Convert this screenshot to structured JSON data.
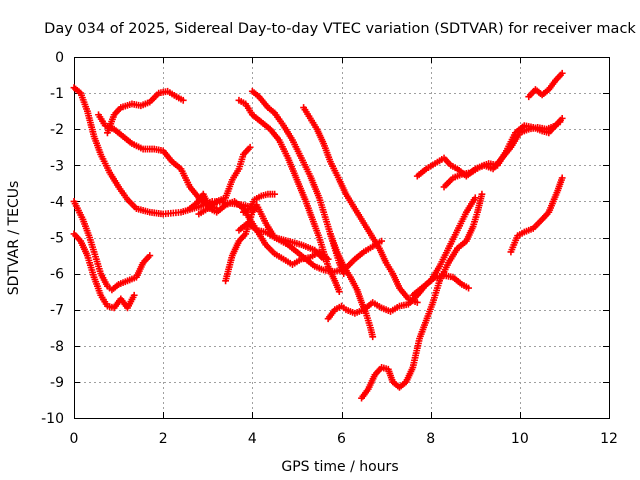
{
  "chart_data": {
    "type": "scatter",
    "title": "Day 034 of 2025, Sidereal Day-to-day VTEC variation (SDTVAR) for receiver mack",
    "xlabel": "GPS time / hours",
    "ylabel": "SDTVAR / TECUs",
    "xlim": [
      0,
      12
    ],
    "ylim": [
      -10,
      0
    ],
    "x_ticks": [
      0,
      2,
      4,
      6,
      8,
      10,
      12
    ],
    "y_ticks": [
      0,
      -1,
      -2,
      -3,
      -4,
      -5,
      -6,
      -7,
      -8,
      -9,
      -10
    ],
    "grid": true,
    "marker": "plus",
    "color": "#ff0000",
    "series": [
      {
        "name": "track-1",
        "points": [
          [
            0,
            -0.85
          ],
          [
            0.15,
            -1.0
          ],
          [
            0.3,
            -1.5
          ],
          [
            0.45,
            -2.2
          ],
          [
            0.6,
            -2.7
          ],
          [
            0.8,
            -3.2
          ],
          [
            1.0,
            -3.6
          ],
          [
            1.2,
            -3.95
          ],
          [
            1.4,
            -4.2
          ],
          [
            1.7,
            -4.3
          ],
          [
            2.0,
            -4.35
          ],
          [
            2.4,
            -4.3
          ],
          [
            2.8,
            -4.15
          ],
          [
            3.1,
            -4.0
          ],
          [
            3.5,
            -4.05
          ],
          [
            3.8,
            -4.1
          ],
          [
            4.1,
            -4.2
          ]
        ]
      },
      {
        "name": "track-2",
        "points": [
          [
            0,
            -4.0
          ],
          [
            0.2,
            -4.5
          ],
          [
            0.35,
            -5.0
          ],
          [
            0.5,
            -5.6
          ],
          [
            0.6,
            -6.0
          ],
          [
            0.75,
            -6.35
          ],
          [
            0.85,
            -6.45
          ],
          [
            1.0,
            -6.3
          ],
          [
            1.2,
            -6.2
          ],
          [
            1.4,
            -6.1
          ],
          [
            1.55,
            -5.7
          ],
          [
            1.7,
            -5.5
          ]
        ]
      },
      {
        "name": "track-3",
        "points": [
          [
            0,
            -4.9
          ],
          [
            0.15,
            -5.1
          ],
          [
            0.3,
            -5.5
          ],
          [
            0.45,
            -6.1
          ],
          [
            0.6,
            -6.6
          ],
          [
            0.75,
            -6.9
          ],
          [
            0.9,
            -6.95
          ],
          [
            1.05,
            -6.7
          ],
          [
            1.2,
            -6.95
          ],
          [
            1.35,
            -6.6
          ]
        ]
      },
      {
        "name": "track-4",
        "points": [
          [
            0.55,
            -1.6
          ],
          [
            0.7,
            -1.9
          ],
          [
            0.9,
            -2.0
          ],
          [
            1.1,
            -2.2
          ],
          [
            1.3,
            -2.4
          ],
          [
            1.55,
            -2.55
          ],
          [
            1.8,
            -2.55
          ],
          [
            2.0,
            -2.6
          ],
          [
            2.2,
            -2.9
          ],
          [
            2.4,
            -3.1
          ],
          [
            2.6,
            -3.6
          ],
          [
            2.8,
            -3.9
          ],
          [
            3.0,
            -4.1
          ],
          [
            3.2,
            -4.2
          ]
        ]
      },
      {
        "name": "track-5",
        "points": [
          [
            0.75,
            -2.1
          ],
          [
            0.9,
            -1.6
          ],
          [
            1.05,
            -1.4
          ],
          [
            1.3,
            -1.3
          ],
          [
            1.5,
            -1.35
          ],
          [
            1.7,
            -1.25
          ],
          [
            1.9,
            -1.0
          ],
          [
            2.1,
            -0.95
          ],
          [
            2.3,
            -1.1
          ],
          [
            2.45,
            -1.2
          ]
        ]
      },
      {
        "name": "track-6",
        "points": [
          [
            2.8,
            -4.35
          ],
          [
            3.0,
            -4.2
          ],
          [
            3.2,
            -4.0
          ],
          [
            3.4,
            -3.9
          ],
          [
            3.55,
            -3.4
          ],
          [
            3.7,
            -3.1
          ],
          [
            3.8,
            -2.7
          ],
          [
            3.95,
            -2.5
          ]
        ]
      },
      {
        "name": "track-7",
        "points": [
          [
            2.6,
            -4.2
          ],
          [
            2.75,
            -4.05
          ],
          [
            2.9,
            -3.8
          ],
          [
            3.05,
            -4.2
          ],
          [
            3.2,
            -4.3
          ],
          [
            3.4,
            -4.1
          ],
          [
            3.6,
            -4.0
          ],
          [
            3.8,
            -4.2
          ],
          [
            3.95,
            -4.5
          ],
          [
            4.1,
            -4.8
          ],
          [
            4.3,
            -5.2
          ],
          [
            4.5,
            -5.45
          ],
          [
            4.7,
            -5.6
          ],
          [
            4.9,
            -5.75
          ],
          [
            5.1,
            -5.6
          ],
          [
            5.3,
            -5.55
          ],
          [
            5.5,
            -5.4
          ],
          [
            5.7,
            -5.6
          ]
        ]
      },
      {
        "name": "track-8",
        "points": [
          [
            3.4,
            -6.2
          ],
          [
            3.55,
            -5.5
          ],
          [
            3.7,
            -5.1
          ],
          [
            3.85,
            -4.9
          ],
          [
            4.0,
            -4.3
          ],
          [
            4.1,
            -4.1
          ],
          [
            4.3,
            -4.6
          ],
          [
            4.5,
            -5.0
          ],
          [
            4.8,
            -5.2
          ],
          [
            5.1,
            -5.5
          ],
          [
            5.4,
            -5.8
          ],
          [
            5.6,
            -5.9
          ],
          [
            5.85,
            -5.95
          ],
          [
            6.1,
            -5.85
          ],
          [
            6.3,
            -5.6
          ],
          [
            6.5,
            -5.4
          ],
          [
            6.7,
            -5.25
          ],
          [
            6.9,
            -5.1
          ]
        ]
      },
      {
        "name": "track-9",
        "points": [
          [
            3.8,
            -4.3
          ],
          [
            3.95,
            -4.2
          ],
          [
            4.05,
            -3.95
          ],
          [
            4.2,
            -3.85
          ],
          [
            4.35,
            -3.8
          ],
          [
            4.5,
            -3.8
          ]
        ]
      },
      {
        "name": "track-10",
        "points": [
          [
            3.7,
            -4.8
          ],
          [
            3.9,
            -4.6
          ],
          [
            4.1,
            -4.8
          ],
          [
            4.3,
            -4.85
          ],
          [
            4.5,
            -5.0
          ],
          [
            4.8,
            -5.1
          ],
          [
            5.1,
            -5.2
          ],
          [
            5.4,
            -5.35
          ],
          [
            5.6,
            -5.6
          ]
        ]
      },
      {
        "name": "track-11",
        "points": [
          [
            4.0,
            -0.95
          ],
          [
            4.15,
            -1.1
          ],
          [
            4.35,
            -1.4
          ],
          [
            4.5,
            -1.55
          ],
          [
            4.7,
            -1.9
          ],
          [
            4.9,
            -2.3
          ],
          [
            5.1,
            -2.8
          ],
          [
            5.3,
            -3.3
          ],
          [
            5.5,
            -3.9
          ],
          [
            5.65,
            -4.5
          ],
          [
            5.8,
            -5.1
          ],
          [
            5.95,
            -5.7
          ],
          [
            6.05,
            -6.0
          ]
        ]
      },
      {
        "name": "track-12",
        "points": [
          [
            3.7,
            -1.2
          ],
          [
            3.85,
            -1.3
          ],
          [
            4.0,
            -1.6
          ],
          [
            4.2,
            -1.8
          ],
          [
            4.4,
            -2.0
          ],
          [
            4.6,
            -2.3
          ],
          [
            4.8,
            -2.8
          ],
          [
            5.0,
            -3.4
          ],
          [
            5.2,
            -4.0
          ],
          [
            5.35,
            -4.5
          ],
          [
            5.5,
            -5.0
          ],
          [
            5.6,
            -5.4
          ],
          [
            5.7,
            -5.8
          ],
          [
            5.85,
            -6.2
          ],
          [
            5.95,
            -6.5
          ]
        ]
      },
      {
        "name": "track-13",
        "points": [
          [
            5.15,
            -1.4
          ],
          [
            5.3,
            -1.7
          ],
          [
            5.45,
            -2.0
          ],
          [
            5.6,
            -2.4
          ],
          [
            5.75,
            -2.9
          ],
          [
            5.95,
            -3.4
          ],
          [
            6.1,
            -3.8
          ],
          [
            6.3,
            -4.2
          ],
          [
            6.5,
            -4.6
          ],
          [
            6.7,
            -5.0
          ],
          [
            6.85,
            -5.3
          ],
          [
            7.0,
            -5.7
          ],
          [
            7.15,
            -6.0
          ],
          [
            7.3,
            -6.4
          ],
          [
            7.5,
            -6.7
          ],
          [
            7.7,
            -6.8
          ]
        ]
      },
      {
        "name": "track-14",
        "points": [
          [
            5.75,
            -4.9
          ],
          [
            5.9,
            -5.4
          ],
          [
            6.05,
            -5.8
          ],
          [
            6.2,
            -6.1
          ],
          [
            6.35,
            -6.45
          ],
          [
            6.45,
            -6.8
          ],
          [
            6.55,
            -7.1
          ],
          [
            6.65,
            -7.5
          ],
          [
            6.7,
            -7.75
          ]
        ]
      },
      {
        "name": "track-15",
        "points": [
          [
            5.7,
            -7.25
          ],
          [
            5.85,
            -7.0
          ],
          [
            6.0,
            -6.9
          ],
          [
            6.1,
            -7.0
          ],
          [
            6.3,
            -7.1
          ],
          [
            6.5,
            -7.0
          ],
          [
            6.7,
            -6.8
          ],
          [
            6.9,
            -6.95
          ],
          [
            7.1,
            -7.05
          ],
          [
            7.3,
            -6.9
          ],
          [
            7.5,
            -6.85
          ],
          [
            7.7,
            -6.6
          ],
          [
            7.9,
            -6.3
          ],
          [
            8.1,
            -6.1
          ],
          [
            8.3,
            -6.05
          ],
          [
            8.5,
            -6.1
          ],
          [
            8.7,
            -6.3
          ],
          [
            8.85,
            -6.4
          ]
        ]
      },
      {
        "name": "track-16",
        "points": [
          [
            6.45,
            -9.45
          ],
          [
            6.6,
            -9.2
          ],
          [
            6.75,
            -8.8
          ],
          [
            6.9,
            -8.6
          ],
          [
            7.05,
            -8.65
          ],
          [
            7.15,
            -9.0
          ],
          [
            7.3,
            -9.15
          ],
          [
            7.45,
            -9.0
          ],
          [
            7.6,
            -8.6
          ],
          [
            7.75,
            -7.8
          ],
          [
            7.9,
            -7.3
          ],
          [
            8.05,
            -6.8
          ],
          [
            8.2,
            -6.2
          ],
          [
            8.4,
            -5.7
          ],
          [
            8.6,
            -5.3
          ],
          [
            8.8,
            -5.1
          ],
          [
            8.95,
            -4.7
          ],
          [
            9.05,
            -4.3
          ],
          [
            9.15,
            -3.8
          ]
        ]
      },
      {
        "name": "track-17",
        "points": [
          [
            7.6,
            -6.6
          ],
          [
            7.8,
            -6.4
          ],
          [
            8.0,
            -6.2
          ],
          [
            8.2,
            -5.8
          ],
          [
            8.4,
            -5.3
          ],
          [
            8.6,
            -4.8
          ],
          [
            8.8,
            -4.3
          ],
          [
            9.0,
            -3.9
          ]
        ]
      },
      {
        "name": "track-18",
        "points": [
          [
            7.7,
            -3.3
          ],
          [
            7.9,
            -3.1
          ],
          [
            8.1,
            -2.95
          ],
          [
            8.3,
            -2.8
          ],
          [
            8.45,
            -3.0
          ],
          [
            8.6,
            -3.1
          ],
          [
            8.8,
            -3.3
          ],
          [
            9.0,
            -3.1
          ],
          [
            9.2,
            -3.0
          ],
          [
            9.4,
            -3.1
          ],
          [
            9.6,
            -2.8
          ],
          [
            9.8,
            -2.5
          ],
          [
            10.0,
            -2.1
          ],
          [
            10.2,
            -2.0
          ],
          [
            10.4,
            -1.95
          ],
          [
            10.6,
            -2.0
          ],
          [
            10.8,
            -1.9
          ],
          [
            10.95,
            -1.7
          ]
        ]
      },
      {
        "name": "track-19",
        "points": [
          [
            8.3,
            -3.6
          ],
          [
            8.5,
            -3.35
          ],
          [
            8.7,
            -3.25
          ],
          [
            8.9,
            -3.2
          ],
          [
            9.1,
            -3.05
          ],
          [
            9.3,
            -2.95
          ],
          [
            9.5,
            -3.0
          ],
          [
            9.7,
            -2.6
          ],
          [
            9.9,
            -2.1
          ],
          [
            10.1,
            -1.9
          ],
          [
            10.3,
            -1.95
          ],
          [
            10.5,
            -2.05
          ],
          [
            10.65,
            -2.1
          ],
          [
            10.8,
            -1.9
          ],
          [
            10.9,
            -1.8
          ]
        ]
      },
      {
        "name": "track-20",
        "points": [
          [
            10.2,
            -1.1
          ],
          [
            10.35,
            -0.9
          ],
          [
            10.5,
            -1.05
          ],
          [
            10.65,
            -0.9
          ],
          [
            10.8,
            -0.65
          ],
          [
            10.95,
            -0.45
          ]
        ]
      },
      {
        "name": "track-21",
        "points": [
          [
            9.8,
            -5.4
          ],
          [
            9.95,
            -4.95
          ],
          [
            10.1,
            -4.85
          ],
          [
            10.3,
            -4.75
          ],
          [
            10.5,
            -4.5
          ],
          [
            10.65,
            -4.3
          ],
          [
            10.75,
            -4.0
          ],
          [
            10.85,
            -3.7
          ],
          [
            10.95,
            -3.35
          ]
        ]
      }
    ]
  }
}
